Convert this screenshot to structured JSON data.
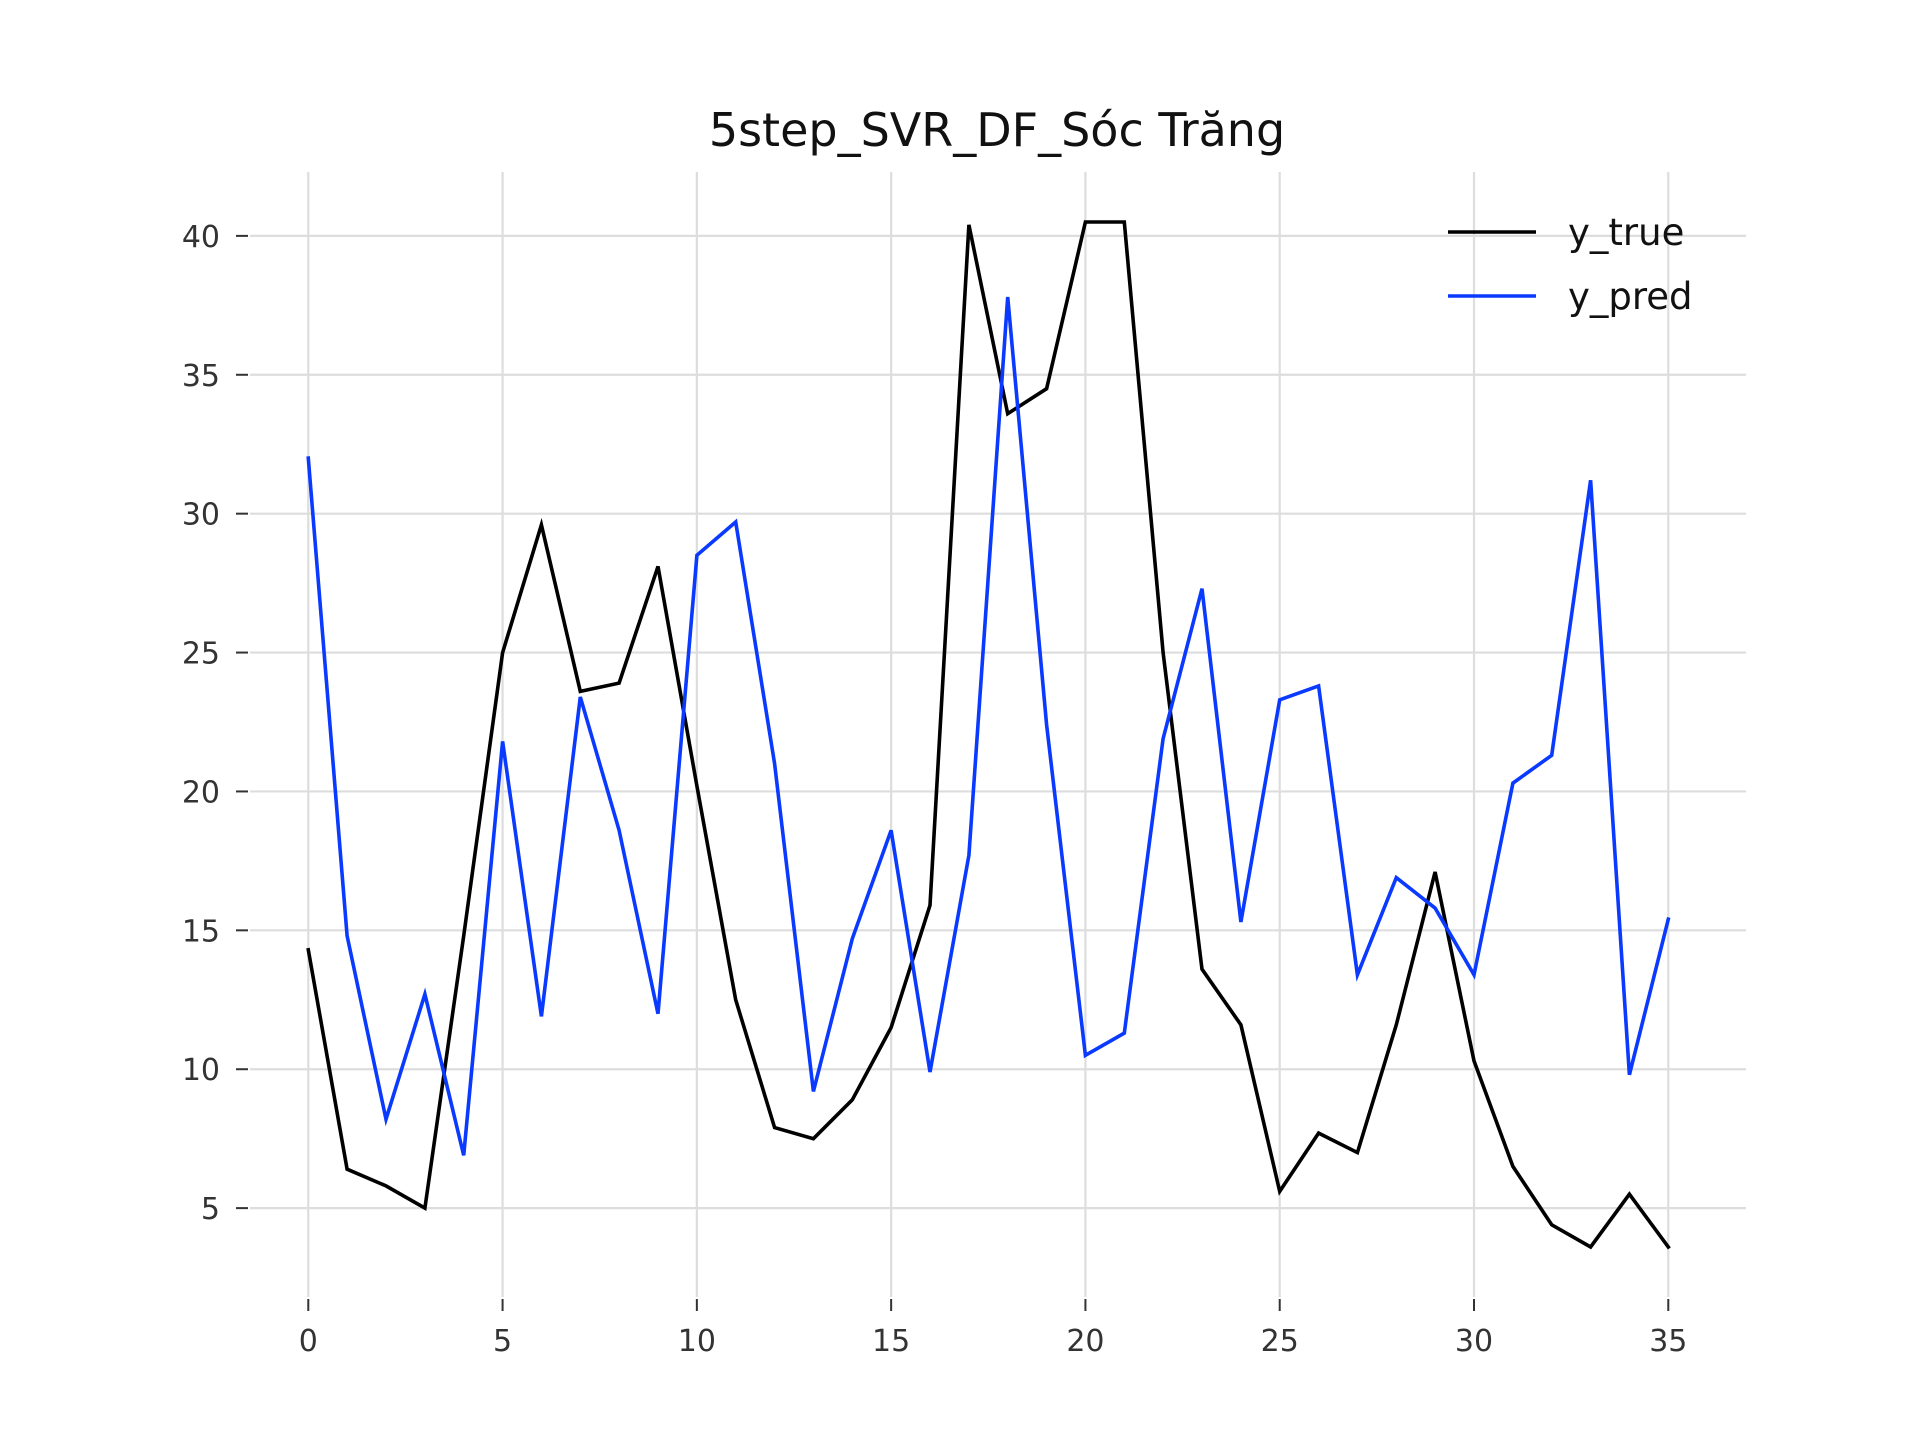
{
  "chart_data": {
    "type": "line",
    "title": "5step_SVR_DF_Sóc Trăng",
    "xlabel": "",
    "ylabel": "",
    "xlim": [
      -1.5,
      37.0
    ],
    "ylim": [
      1.8,
      42.3
    ],
    "xticks": [
      0,
      5,
      10,
      15,
      20,
      25,
      30,
      35
    ],
    "yticks": [
      5,
      10,
      15,
      20,
      25,
      30,
      35,
      40
    ],
    "grid": true,
    "legend_position": "top-right",
    "x": [
      0,
      1,
      2,
      3,
      4,
      5,
      6,
      7,
      8,
      9,
      10,
      11,
      12,
      13,
      14,
      15,
      16,
      17,
      18,
      19,
      20,
      21,
      22,
      23,
      24,
      25,
      26,
      27,
      28,
      29,
      30,
      31,
      32,
      33,
      34,
      35
    ],
    "series": [
      {
        "name": "y_true",
        "color": "#000000",
        "values": [
          14.3,
          6.4,
          5.8,
          5.0,
          14.8,
          25.0,
          29.6,
          23.6,
          23.9,
          28.1,
          20.2,
          12.5,
          7.9,
          7.5,
          8.9,
          11.5,
          15.9,
          40.4,
          33.6,
          34.5,
          40.5,
          40.5,
          25.0,
          13.6,
          11.6,
          5.6,
          7.7,
          7.0,
          11.6,
          17.1,
          10.3,
          6.5,
          4.4,
          3.6,
          5.5,
          3.6
        ]
      },
      {
        "name": "y_pred",
        "color": "#0a3aff",
        "values": [
          32.0,
          14.8,
          8.2,
          12.7,
          6.9,
          21.8,
          11.9,
          23.4,
          18.6,
          12.0,
          28.5,
          29.7,
          21.0,
          9.2,
          14.7,
          18.6,
          9.9,
          17.7,
          37.8,
          22.4,
          10.5,
          11.3,
          21.9,
          27.3,
          15.3,
          23.3,
          23.8,
          13.4,
          16.9,
          15.8,
          13.4,
          20.3,
          21.3,
          31.2,
          9.8,
          15.4
        ]
      }
    ]
  }
}
